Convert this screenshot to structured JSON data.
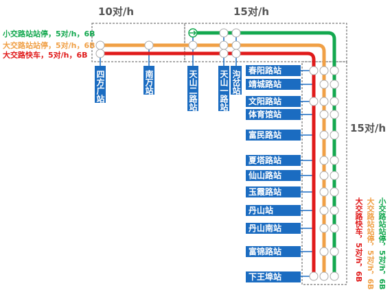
{
  "frequency_labels": {
    "top_left": "10对/h",
    "top_right": "15对/h",
    "right": "15对/h"
  },
  "services": [
    {
      "name": "小交路站站停，5对/h，6B",
      "color": "#13a84f"
    },
    {
      "name": "大交路站站停，5对/h，6B",
      "color": "#f0a046"
    },
    {
      "name": "大交路快车，5对/h，6B",
      "color": "#e01a1a"
    }
  ],
  "stations_top": [
    "四方广站",
    "南万站",
    "天山二路站",
    "天山一路站",
    "沟岔站"
  ],
  "stations_right": [
    "春阳路站",
    "靖城路站",
    "文阳路站",
    "体育馆站",
    "富民路站",
    "夏塔路站",
    "仙山路站",
    "玉霞路站",
    "丹山站",
    "丹山南站",
    "富锦路站",
    "下王埠站"
  ]
}
